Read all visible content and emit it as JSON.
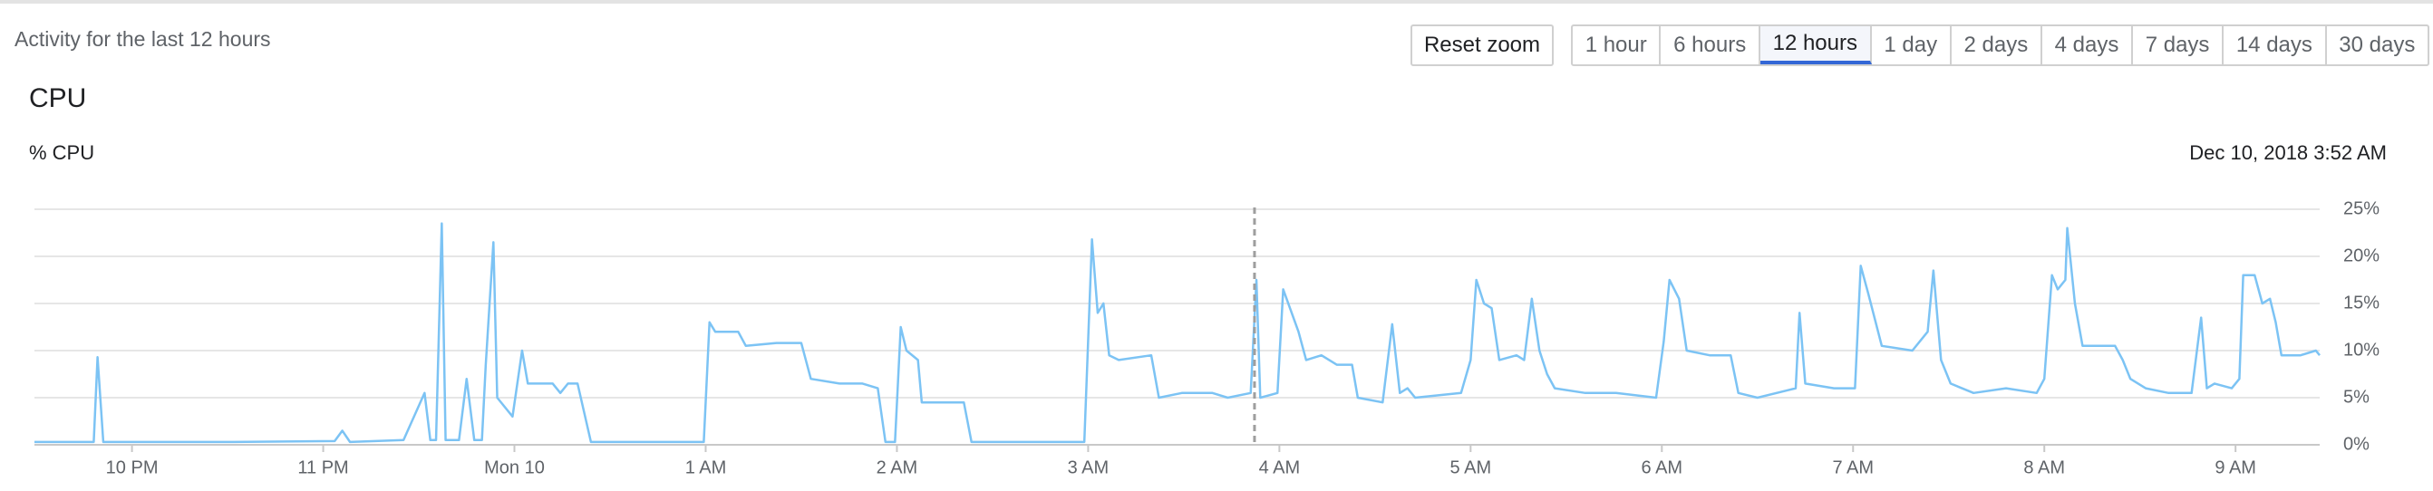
{
  "header": {
    "title": "Activity for the last 12 hours"
  },
  "controls": {
    "reset": "Reset zoom",
    "ranges": [
      "1 hour",
      "6 hours",
      "12 hours",
      "1 day",
      "2 days",
      "4 days",
      "7 days",
      "14 days",
      "30 days"
    ],
    "selected": "12 hours"
  },
  "chart_data": {
    "type": "line",
    "title": "CPU",
    "y_label": "% CPU",
    "color": "#7cc3f4",
    "grid": true,
    "cursor": {
      "x": 27.87,
      "label": "Dec 10, 2018 3:52 AM"
    },
    "xlim": [
      21.49,
      33.44
    ],
    "xticks": [
      {
        "value": 22,
        "label": "10 PM"
      },
      {
        "value": 23,
        "label": "11 PM"
      },
      {
        "value": 24,
        "label": "Mon 10"
      },
      {
        "value": 25,
        "label": "1 AM"
      },
      {
        "value": 26,
        "label": "2 AM"
      },
      {
        "value": 27,
        "label": "3 AM"
      },
      {
        "value": 28,
        "label": "4 AM"
      },
      {
        "value": 29,
        "label": "5 AM"
      },
      {
        "value": 30,
        "label": "6 AM"
      },
      {
        "value": 31,
        "label": "7 AM"
      },
      {
        "value": 32,
        "label": "8 AM"
      },
      {
        "value": 33,
        "label": "9 AM"
      }
    ],
    "ylim": [
      0,
      25
    ],
    "yticks": [
      {
        "value": 0,
        "label": "0%"
      },
      {
        "value": 5,
        "label": "5%"
      },
      {
        "value": 10,
        "label": "10%"
      },
      {
        "value": 15,
        "label": "15%"
      },
      {
        "value": 20,
        "label": "20%"
      },
      {
        "value": 25,
        "label": "25%"
      }
    ],
    "x": [
      21.49,
      21.8,
      21.82,
      21.85,
      22.53,
      23.06,
      23.1,
      23.14,
      23.42,
      23.53,
      23.56,
      23.59,
      23.62,
      23.64,
      23.71,
      23.75,
      23.79,
      23.83,
      23.85,
      23.89,
      23.91,
      23.99,
      24.04,
      24.07,
      24.2,
      24.24,
      24.28,
      24.33,
      24.4,
      24.99,
      25.02,
      25.05,
      25.17,
      25.21,
      25.37,
      25.5,
      25.55,
      25.7,
      25.82,
      25.9,
      25.94,
      25.99,
      26.02,
      26.05,
      26.11,
      26.13,
      26.35,
      26.39,
      26.98,
      27.02,
      27.05,
      27.08,
      27.11,
      27.16,
      27.33,
      27.37,
      27.49,
      27.65,
      27.73,
      27.85,
      27.88,
      27.9,
      27.99,
      28.02,
      28.1,
      28.14,
      28.22,
      28.3,
      28.38,
      28.41,
      28.54,
      28.59,
      28.63,
      28.67,
      28.71,
      28.95,
      29.0,
      29.03,
      29.07,
      29.11,
      29.15,
      29.24,
      29.28,
      29.32,
      29.36,
      29.4,
      29.44,
      29.6,
      29.76,
      29.97,
      30.01,
      30.04,
      30.09,
      30.13,
      30.25,
      30.36,
      30.4,
      30.5,
      30.66,
      30.7,
      30.72,
      30.75,
      30.9,
      31.01,
      31.04,
      31.08,
      31.15,
      31.31,
      31.39,
      31.42,
      31.46,
      31.51,
      31.63,
      31.8,
      31.96,
      32.0,
      32.04,
      32.07,
      32.11,
      32.12,
      32.16,
      32.2,
      32.37,
      32.41,
      32.45,
      32.53,
      32.65,
      32.77,
      32.82,
      32.85,
      32.89,
      32.98,
      33.02,
      33.04,
      33.1,
      33.14,
      33.18,
      33.21,
      33.24,
      33.34,
      33.42,
      33.44
    ],
    "values": [
      0.3,
      0.3,
      9.3,
      0.3,
      0.3,
      0.4,
      1.5,
      0.3,
      0.5,
      5.5,
      0.5,
      0.5,
      23.5,
      0.5,
      0.5,
      7,
      0.5,
      0.5,
      8.5,
      21.5,
      5,
      3,
      10,
      6.5,
      6.5,
      5.5,
      6.5,
      6.5,
      0.3,
      0.3,
      13,
      12,
      12,
      10.5,
      10.8,
      10.8,
      7,
      6.5,
      6.5,
      6,
      0.3,
      0.3,
      12.5,
      10,
      9,
      4.5,
      4.5,
      0.3,
      0.3,
      21.8,
      14,
      15,
      9.5,
      9,
      9.5,
      5,
      5.5,
      5.5,
      5,
      5.5,
      17.5,
      5,
      5.5,
      16.5,
      12,
      9,
      9.5,
      8.5,
      8.5,
      5,
      4.5,
      12.8,
      5.5,
      6,
      5,
      5.5,
      9,
      17.5,
      15,
      14.5,
      9,
      9.5,
      9,
      15.5,
      10,
      7.5,
      6,
      5.5,
      5.5,
      5,
      11,
      17.5,
      15.5,
      10,
      9.5,
      9.5,
      5.5,
      5,
      5.8,
      6,
      14,
      6.5,
      6,
      6,
      19,
      16,
      10.5,
      10,
      12,
      18.5,
      9,
      6.5,
      5.5,
      6,
      5.5,
      7,
      18,
      16.5,
      17.5,
      23,
      15,
      10.5,
      10.5,
      9,
      7,
      6,
      5.5,
      5.5,
      13.5,
      6,
      6.5,
      6,
      7,
      18,
      18,
      15,
      15.5,
      13,
      9.5,
      9.5,
      10,
      9.5
    ]
  }
}
